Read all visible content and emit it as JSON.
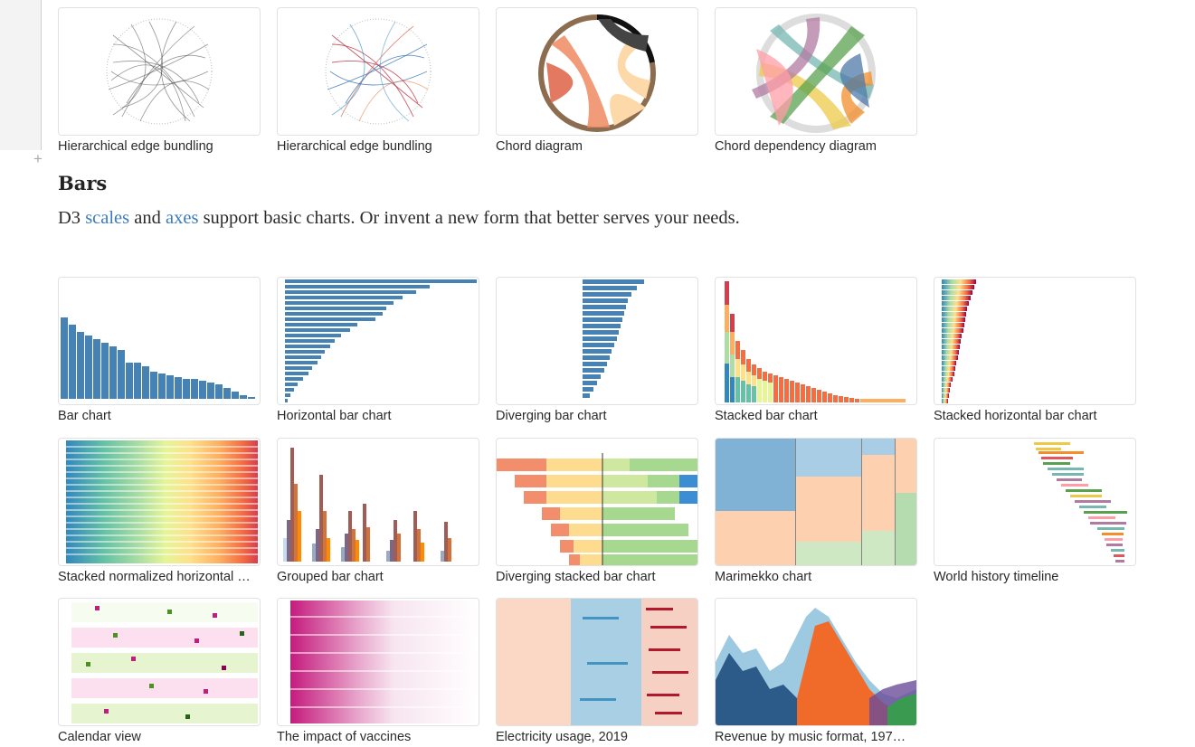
{
  "top_row": [
    {
      "caption": "Hierarchical edge bundling"
    },
    {
      "caption": "Hierarchical edge bundling"
    },
    {
      "caption": "Chord diagram"
    },
    {
      "caption": "Chord dependency diagram"
    }
  ],
  "section": {
    "title": "Bars",
    "description_prefix": "D3 ",
    "link_scales": "scales",
    "description_mid": " and ",
    "link_axes": "axes",
    "description_suffix": " support basic charts. Or invent a new form that better serves your needs."
  },
  "row_bars_1": [
    {
      "caption": "Bar chart"
    },
    {
      "caption": "Horizontal bar chart"
    },
    {
      "caption": "Diverging bar chart"
    },
    {
      "caption": "Stacked bar chart"
    },
    {
      "caption": "Stacked horizontal bar chart"
    }
  ],
  "row_bars_2": [
    {
      "caption": "Stacked normalized horizontal …"
    },
    {
      "caption": "Grouped bar chart"
    },
    {
      "caption": "Diverging stacked bar chart"
    },
    {
      "caption": "Marimekko chart"
    },
    {
      "caption": "World history timeline"
    }
  ],
  "row_bars_3": [
    {
      "caption": "Calendar view"
    },
    {
      "caption": "The impact of vaccines"
    },
    {
      "caption": "Electricity usage, 2019"
    },
    {
      "caption": "Revenue by music format, 197…"
    }
  ],
  "colors": {
    "accent_blue": "#4682b4",
    "link": "#3a7bbf",
    "orange": "#f28e2b"
  }
}
